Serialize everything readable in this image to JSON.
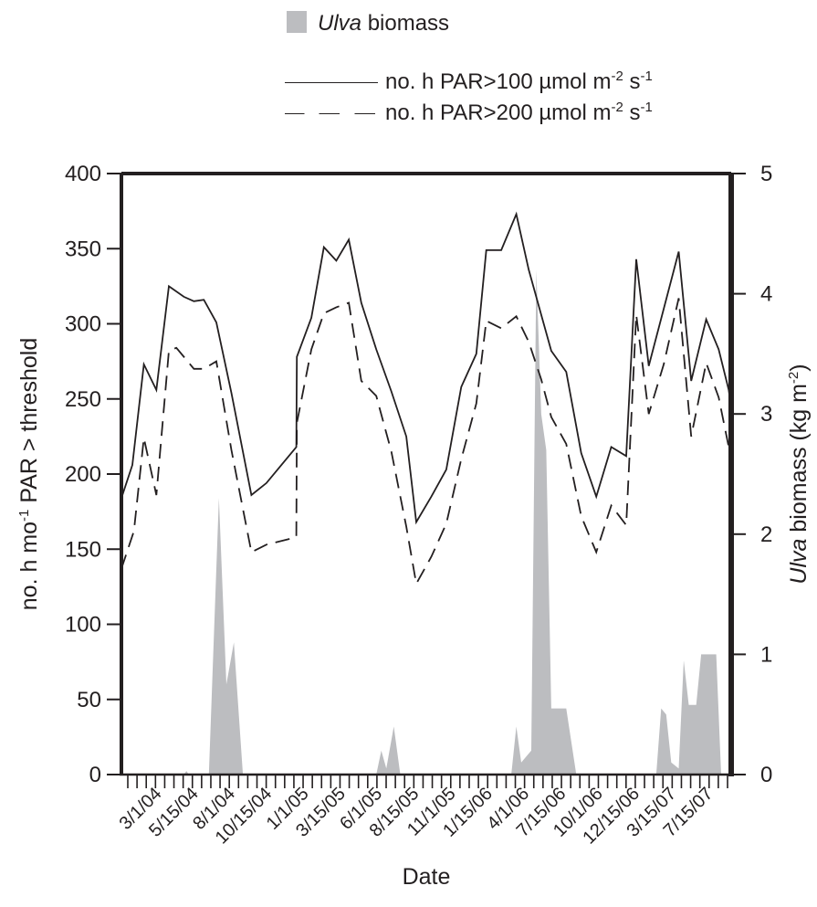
{
  "legend": {
    "area_label": "biomass",
    "area_label_italic": "Ulva",
    "solid_label": "no. h PAR>100 µmol m",
    "dash_label": "no. h PAR>200 µmol m",
    "unit_exp1": "-2",
    "unit_mid": " s",
    "unit_exp2": "-1"
  },
  "chart_data": {
    "type": "line",
    "xlabel": "Date",
    "ylabel_left": "no. h mo-1 PAR > threshold",
    "ylabel_right": "Ulva biomass (kg m-2)",
    "ylim_left": [
      0,
      400
    ],
    "ylim_right": [
      0,
      5
    ],
    "yticks_left": [
      0,
      50,
      100,
      150,
      200,
      250,
      300,
      350,
      400
    ],
    "yticks_right": [
      0,
      1,
      2,
      3,
      4,
      5
    ],
    "x_tick_labels": [
      "3/1/04",
      "5/15/04",
      "8/1/04",
      "10/15/04",
      "1/1/05",
      "3/15/05",
      "6/1/05",
      "8/15/05",
      "11/1/05",
      "1/15/06",
      "4/1/06",
      "7/15/06",
      "10/1/06",
      "12/15/06",
      "3/15/07",
      "7/15/07"
    ],
    "grid": false,
    "series": [
      {
        "name": "no. h PAR>100 µmol m-2 s-1",
        "style": "solid",
        "axis": "left",
        "points": [
          [
            0,
            184
          ],
          [
            2.2,
            206
          ],
          [
            4.5,
            273
          ],
          [
            7,
            256
          ],
          [
            9.5,
            325
          ],
          [
            12.5,
            318
          ],
          [
            14.5,
            315
          ],
          [
            16.5,
            316
          ],
          [
            19,
            301
          ],
          [
            22,
            254
          ],
          [
            26,
            186
          ],
          [
            29,
            194
          ],
          [
            35,
            218
          ],
          [
            35.1,
            278
          ],
          [
            38,
            304
          ],
          [
            40.5,
            351
          ],
          [
            43,
            342
          ],
          [
            45.5,
            356
          ],
          [
            48,
            314
          ],
          [
            51,
            283
          ],
          [
            54,
            255
          ],
          [
            57,
            225
          ],
          [
            59,
            168
          ],
          [
            62,
            185
          ],
          [
            65,
            203
          ],
          [
            68,
            258
          ],
          [
            71,
            280
          ],
          [
            73,
            349
          ],
          [
            76,
            349
          ],
          [
            79,
            373
          ],
          [
            81.5,
            336
          ],
          [
            84,
            306
          ],
          [
            86,
            282
          ],
          [
            89,
            268
          ],
          [
            92,
            214
          ],
          [
            95,
            185
          ],
          [
            98,
            218
          ],
          [
            101,
            212
          ],
          [
            103,
            343
          ],
          [
            105.5,
            272
          ],
          [
            108.5,
            310
          ],
          [
            111.5,
            348
          ],
          [
            114,
            262
          ],
          [
            117,
            303
          ],
          [
            119.5,
            283
          ],
          [
            121.5,
            256
          ],
          [
            122,
            244
          ]
        ]
      },
      {
        "name": "no. h PAR>200 µmol m-2 s-1",
        "style": "dashed",
        "axis": "left",
        "points": [
          [
            0,
            137
          ],
          [
            2.5,
            162
          ],
          [
            4.5,
            224
          ],
          [
            7,
            186
          ],
          [
            9.5,
            282
          ],
          [
            11,
            284
          ],
          [
            14.5,
            270
          ],
          [
            16.5,
            270
          ],
          [
            19,
            275
          ],
          [
            22,
            216
          ],
          [
            26,
            148
          ],
          [
            29,
            153
          ],
          [
            35,
            158
          ],
          [
            35.1,
            234
          ],
          [
            38,
            283
          ],
          [
            40.5,
            307
          ],
          [
            43,
            311
          ],
          [
            45.5,
            314
          ],
          [
            48,
            262
          ],
          [
            51,
            252
          ],
          [
            54,
            215
          ],
          [
            57,
            165
          ],
          [
            59,
            127
          ],
          [
            62,
            145
          ],
          [
            65,
            167
          ],
          [
            68,
            210
          ],
          [
            71,
            247
          ],
          [
            73,
            302
          ],
          [
            76,
            297
          ],
          [
            79,
            305
          ],
          [
            81.5,
            288
          ],
          [
            84,
            263
          ],
          [
            86,
            238
          ],
          [
            89,
            220
          ],
          [
            92,
            172
          ],
          [
            95,
            148
          ],
          [
            98,
            179
          ],
          [
            101,
            166
          ],
          [
            103,
            306
          ],
          [
            105.5,
            240
          ],
          [
            108.5,
            273
          ],
          [
            111.5,
            317
          ],
          [
            114,
            225
          ],
          [
            117,
            274
          ],
          [
            119.5,
            251
          ],
          [
            121.5,
            218
          ],
          [
            122,
            205
          ]
        ]
      },
      {
        "name": "Ulva biomass",
        "style": "area",
        "axis": "right",
        "color": "#bcbdc0",
        "points": [
          [
            0,
            0
          ],
          [
            12.5,
            0
          ],
          [
            13,
            0.03
          ],
          [
            13.5,
            0
          ],
          [
            17.5,
            0
          ],
          [
            19.5,
            2.3
          ],
          [
            21,
            0.75
          ],
          [
            22.5,
            1.1
          ],
          [
            24.3,
            0
          ],
          [
            51,
            0
          ],
          [
            52,
            0.2
          ],
          [
            53,
            0.05
          ],
          [
            54.5,
            0.4
          ],
          [
            55.8,
            0
          ],
          [
            78,
            0
          ],
          [
            79,
            0.4
          ],
          [
            80,
            0.1
          ],
          [
            82,
            0.2
          ],
          [
            83,
            4.2
          ],
          [
            84,
            3.0
          ],
          [
            85,
            2.7
          ],
          [
            86,
            0.55
          ],
          [
            89,
            0.55
          ],
          [
            91,
            0
          ],
          [
            107,
            0
          ],
          [
            108,
            0.55
          ],
          [
            109,
            0.5
          ],
          [
            110,
            0.1
          ],
          [
            111.5,
            0.05
          ],
          [
            112.5,
            0.95
          ],
          [
            113.5,
            0.58
          ],
          [
            115,
            0.58
          ],
          [
            116,
            1.0
          ],
          [
            119,
            1.0
          ],
          [
            120,
            0
          ],
          [
            122,
            0
          ]
        ]
      }
    ]
  }
}
